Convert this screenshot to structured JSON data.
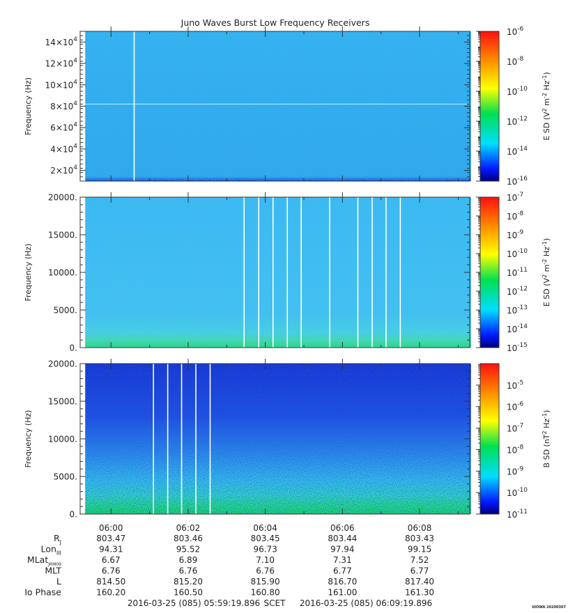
{
  "figure": {
    "title": "Juno Waves Burst Low Frequency Receivers",
    "footer": {
      "start": "2016-03-25 (085) 05:59:19.896",
      "scet": "SCET",
      "end": "2016-03-25 (085) 06:09:19.896",
      "stamp": "UIOWA 20200307"
    }
  },
  "chart_data": [
    {
      "type": "heatmap",
      "title": "Juno Waves Burst Low Frequency Receivers",
      "ylabel": "Frequency (Hz)",
      "colorbar_label": "E SD (V^2 m^-2 Hz^-1)",
      "y_scale": "linear",
      "ylim": [
        10000,
        150000
      ],
      "ytick_labels": [
        "2×10^4",
        "4×10^4",
        "6×10^4",
        "8×10^4",
        "10×10^4",
        "12×10^4",
        "14×10^4"
      ],
      "yticks": [
        20000,
        40000,
        60000,
        80000,
        100000,
        120000,
        140000
      ],
      "colorbar_scale": "log",
      "colorbar_range": [
        1e-16,
        1e-06
      ],
      "colorbar_ticks": [
        "10^-6",
        "10^-8",
        "10^-10",
        "10^-12",
        "10^-14",
        "10^-16"
      ],
      "data_time_range": [
        "05:59:19.896",
        "06:09:19.896"
      ],
      "dominant_level": "~1e-14 (light blue)",
      "gaps_minutes": [
        0.6
      ],
      "narrowband_line_hz": 82000
    },
    {
      "type": "heatmap",
      "ylabel": "Frequency (Hz)",
      "colorbar_label": "E SD (V^2 m^-2 Hz^-1)",
      "y_scale": "linear",
      "ylim": [
        0,
        20000
      ],
      "ytick_labels": [
        "0.",
        "5000.",
        "10000.",
        "15000.",
        "20000."
      ],
      "yticks": [
        0,
        5000,
        10000,
        15000,
        20000
      ],
      "colorbar_scale": "log",
      "colorbar_range": [
        1e-15,
        1e-07
      ],
      "colorbar_ticks": [
        "10^-7",
        "10^-8",
        "10^-9",
        "10^-10",
        "10^-11",
        "10^-12",
        "10^-13",
        "10^-14",
        "10^-15"
      ],
      "data_time_range": [
        "05:59:19.896",
        "06:09:19.896"
      ],
      "dominant_level": "~3e-14 (light blue), enhanced below 1 kHz",
      "gaps_minutes": [
        3.45,
        3.83,
        4.2,
        4.57,
        4.93,
        5.67,
        6.4,
        6.77,
        7.13,
        7.5
      ]
    },
    {
      "type": "heatmap",
      "ylabel": "Frequency (Hz)",
      "colorbar_label": "B SD (nT^2 Hz^-1)",
      "y_scale": "linear",
      "ylim": [
        0,
        20000
      ],
      "ytick_labels": [
        "0.",
        "5000.",
        "10000.",
        "15000.",
        "20000."
      ],
      "yticks": [
        0,
        5000,
        10000,
        15000,
        20000
      ],
      "colorbar_scale": "log",
      "colorbar_range": [
        1e-11,
        0.0001
      ],
      "colorbar_ticks": [
        "10^-5",
        "10^-6",
        "10^-7",
        "10^-8",
        "10^-9",
        "10^-10",
        "10^-11"
      ],
      "data_time_range": [
        "05:59:19.896",
        "06:09:19.896"
      ],
      "dominant_level": "~1e-10 (blue) above 10 kHz, rising to ~1e-8 below 1 kHz",
      "gaps_minutes": [
        1.1,
        1.47,
        1.83,
        2.2,
        2.57
      ]
    }
  ],
  "time_axis": {
    "xlim_minutes_from_0600": [
      -0.8,
      9.3
    ],
    "tick_positions": [
      0,
      2,
      4,
      6,
      8
    ],
    "tick_labels": [
      "06:00",
      "06:02",
      "06:04",
      "06:06",
      "06:08"
    ]
  },
  "ephemeris": {
    "rows": [
      {
        "label": "R",
        "sub": "J",
        "values": [
          "803.47",
          "803.46",
          "803.45",
          "803.44",
          "803.43"
        ]
      },
      {
        "label": "Lon",
        "sub": "III",
        "values": [
          "94.31",
          "95.52",
          "96.73",
          "97.94",
          "99.15"
        ]
      },
      {
        "label": "MLat",
        "sub": "JRM09",
        "values": [
          "6.67",
          "6.89",
          "7.10",
          "7.31",
          "7.52"
        ]
      },
      {
        "label": "MLT",
        "sub": "",
        "values": [
          "6.76",
          "6.76",
          "6.76",
          "6.77",
          "6.77"
        ]
      },
      {
        "label": "L",
        "sub": "",
        "values": [
          "814.50",
          "815.20",
          "815.90",
          "816.70",
          "817.40"
        ]
      },
      {
        "label": "Io Phase",
        "sub": "",
        "values": [
          "160.20",
          "160.50",
          "160.80",
          "161.00",
          "161.30"
        ]
      }
    ]
  },
  "colors": {
    "frame": "#333333",
    "panel1_base": "#2bb0ee",
    "panel2_base": "#33b8f0",
    "panel3_base": "#1a3cd8",
    "low_freq_enhancement": "#19e07a"
  }
}
